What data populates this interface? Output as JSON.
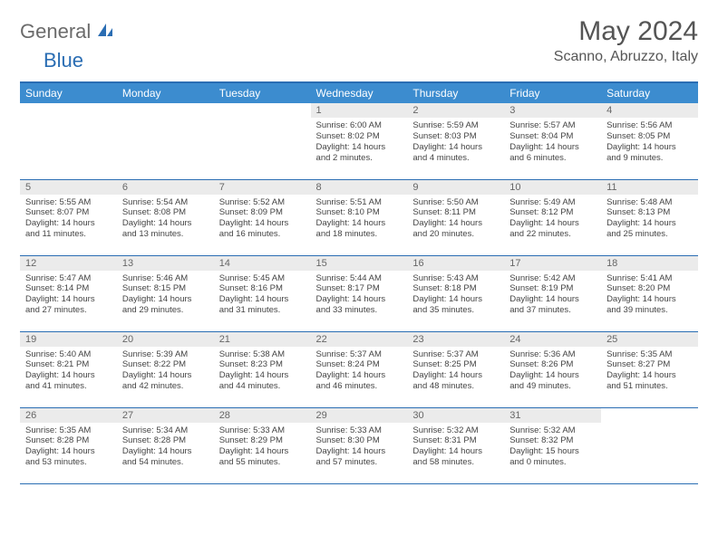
{
  "logo": {
    "part1": "General",
    "part2": "Blue"
  },
  "title": "May 2024",
  "location": "Scanno, Abruzzo, Italy",
  "colors": {
    "header_bg": "#3c8ccf",
    "border": "#2a6db3",
    "daynum_bg": "#ebebeb",
    "text": "#444444",
    "title_text": "#555555"
  },
  "weekdays": [
    "Sunday",
    "Monday",
    "Tuesday",
    "Wednesday",
    "Thursday",
    "Friday",
    "Saturday"
  ],
  "weeks": [
    [
      null,
      null,
      null,
      {
        "d": "1",
        "sunrise": "6:00 AM",
        "sunset": "8:02 PM",
        "day": "14 hours and 2 minutes."
      },
      {
        "d": "2",
        "sunrise": "5:59 AM",
        "sunset": "8:03 PM",
        "day": "14 hours and 4 minutes."
      },
      {
        "d": "3",
        "sunrise": "5:57 AM",
        "sunset": "8:04 PM",
        "day": "14 hours and 6 minutes."
      },
      {
        "d": "4",
        "sunrise": "5:56 AM",
        "sunset": "8:05 PM",
        "day": "14 hours and 9 minutes."
      }
    ],
    [
      {
        "d": "5",
        "sunrise": "5:55 AM",
        "sunset": "8:07 PM",
        "day": "14 hours and 11 minutes."
      },
      {
        "d": "6",
        "sunrise": "5:54 AM",
        "sunset": "8:08 PM",
        "day": "14 hours and 13 minutes."
      },
      {
        "d": "7",
        "sunrise": "5:52 AM",
        "sunset": "8:09 PM",
        "day": "14 hours and 16 minutes."
      },
      {
        "d": "8",
        "sunrise": "5:51 AM",
        "sunset": "8:10 PM",
        "day": "14 hours and 18 minutes."
      },
      {
        "d": "9",
        "sunrise": "5:50 AM",
        "sunset": "8:11 PM",
        "day": "14 hours and 20 minutes."
      },
      {
        "d": "10",
        "sunrise": "5:49 AM",
        "sunset": "8:12 PM",
        "day": "14 hours and 22 minutes."
      },
      {
        "d": "11",
        "sunrise": "5:48 AM",
        "sunset": "8:13 PM",
        "day": "14 hours and 25 minutes."
      }
    ],
    [
      {
        "d": "12",
        "sunrise": "5:47 AM",
        "sunset": "8:14 PM",
        "day": "14 hours and 27 minutes."
      },
      {
        "d": "13",
        "sunrise": "5:46 AM",
        "sunset": "8:15 PM",
        "day": "14 hours and 29 minutes."
      },
      {
        "d": "14",
        "sunrise": "5:45 AM",
        "sunset": "8:16 PM",
        "day": "14 hours and 31 minutes."
      },
      {
        "d": "15",
        "sunrise": "5:44 AM",
        "sunset": "8:17 PM",
        "day": "14 hours and 33 minutes."
      },
      {
        "d": "16",
        "sunrise": "5:43 AM",
        "sunset": "8:18 PM",
        "day": "14 hours and 35 minutes."
      },
      {
        "d": "17",
        "sunrise": "5:42 AM",
        "sunset": "8:19 PM",
        "day": "14 hours and 37 minutes."
      },
      {
        "d": "18",
        "sunrise": "5:41 AM",
        "sunset": "8:20 PM",
        "day": "14 hours and 39 minutes."
      }
    ],
    [
      {
        "d": "19",
        "sunrise": "5:40 AM",
        "sunset": "8:21 PM",
        "day": "14 hours and 41 minutes."
      },
      {
        "d": "20",
        "sunrise": "5:39 AM",
        "sunset": "8:22 PM",
        "day": "14 hours and 42 minutes."
      },
      {
        "d": "21",
        "sunrise": "5:38 AM",
        "sunset": "8:23 PM",
        "day": "14 hours and 44 minutes."
      },
      {
        "d": "22",
        "sunrise": "5:37 AM",
        "sunset": "8:24 PM",
        "day": "14 hours and 46 minutes."
      },
      {
        "d": "23",
        "sunrise": "5:37 AM",
        "sunset": "8:25 PM",
        "day": "14 hours and 48 minutes."
      },
      {
        "d": "24",
        "sunrise": "5:36 AM",
        "sunset": "8:26 PM",
        "day": "14 hours and 49 minutes."
      },
      {
        "d": "25",
        "sunrise": "5:35 AM",
        "sunset": "8:27 PM",
        "day": "14 hours and 51 minutes."
      }
    ],
    [
      {
        "d": "26",
        "sunrise": "5:35 AM",
        "sunset": "8:28 PM",
        "day": "14 hours and 53 minutes."
      },
      {
        "d": "27",
        "sunrise": "5:34 AM",
        "sunset": "8:28 PM",
        "day": "14 hours and 54 minutes."
      },
      {
        "d": "28",
        "sunrise": "5:33 AM",
        "sunset": "8:29 PM",
        "day": "14 hours and 55 minutes."
      },
      {
        "d": "29",
        "sunrise": "5:33 AM",
        "sunset": "8:30 PM",
        "day": "14 hours and 57 minutes."
      },
      {
        "d": "30",
        "sunrise": "5:32 AM",
        "sunset": "8:31 PM",
        "day": "14 hours and 58 minutes."
      },
      {
        "d": "31",
        "sunrise": "5:32 AM",
        "sunset": "8:32 PM",
        "day": "15 hours and 0 minutes."
      },
      null
    ]
  ],
  "labels": {
    "sunrise": "Sunrise: ",
    "sunset": "Sunset: ",
    "daylight": "Daylight: "
  }
}
